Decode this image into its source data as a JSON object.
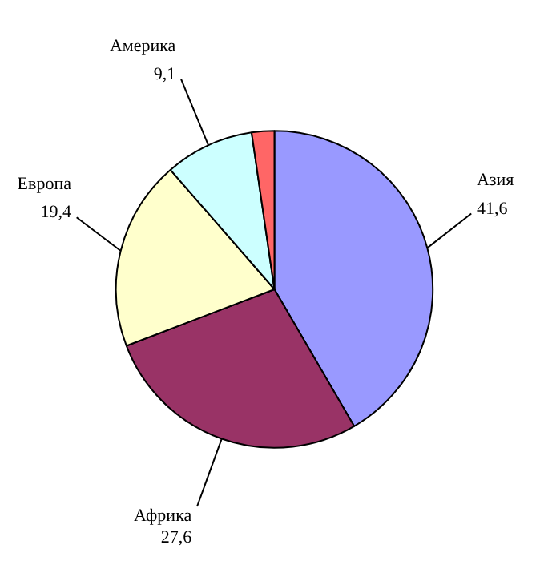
{
  "chart_data": {
    "type": "pie",
    "categories": [
      "Азия",
      "Африка",
      "Европа",
      "Америка",
      null
    ],
    "values": [
      41.6,
      27.6,
      19.4,
      9.1,
      2.3
    ],
    "value_labels": [
      "41,6",
      "27,6",
      "19,4",
      "9,1",
      null
    ],
    "colors": [
      "#9999ff",
      "#993366",
      "#ffffcc",
      "#ccffff",
      "#ff6666"
    ]
  }
}
